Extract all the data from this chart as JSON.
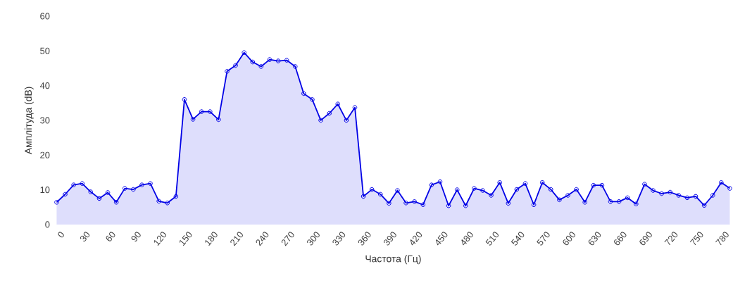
{
  "chart_data": {
    "type": "area",
    "xlabel": "Частота (Гц)",
    "ylabel": "Амплітуда (dB)",
    "categories": [
      "0",
      null,
      null,
      "30",
      null,
      null,
      "60",
      null,
      null,
      "90",
      null,
      null,
      "120",
      null,
      null,
      "150",
      null,
      null,
      "180",
      null,
      null,
      "210",
      null,
      null,
      "240",
      null,
      null,
      "270",
      null,
      null,
      "300",
      null,
      null,
      "330",
      null,
      null,
      "360",
      null,
      null,
      "390",
      null,
      null,
      "420",
      null,
      null,
      "450",
      null,
      null,
      "480",
      null,
      null,
      "510",
      null,
      null,
      "540",
      null,
      null,
      "570",
      null,
      null,
      "600",
      null,
      null,
      "630",
      null,
      null,
      "660",
      null,
      null,
      "690",
      null,
      null,
      "720",
      null,
      null,
      "750",
      null,
      null,
      "780",
      null
    ],
    "series": [
      {
        "color": "#0000e6",
        "values": [
          6.4,
          8.7,
          11.4,
          11.8,
          9.4,
          7.5,
          9.2,
          6.4,
          10.4,
          10.1,
          11.4,
          11.8,
          6.7,
          6.2,
          8.1,
          36.0,
          30.3,
          32.5,
          32.5,
          30.2,
          44.1,
          45.8,
          49.5,
          46.8,
          45.5,
          47.5,
          47.1,
          47.3,
          45.5,
          37.7,
          36.0,
          30.0,
          32.0,
          34.7,
          30.0,
          33.7,
          8.1,
          10.1,
          8.7,
          6.1,
          9.8,
          6.2,
          6.6,
          5.7,
          11.4,
          12.3,
          5.4,
          10.0,
          5.4,
          10.4,
          9.8,
          8.4,
          12.1,
          6.1,
          10.1,
          11.8,
          5.7,
          12.1,
          10.1,
          7.1,
          8.4,
          10.1,
          6.4,
          11.3,
          11.3,
          6.6,
          6.6,
          7.7,
          5.9,
          11.6,
          9.8,
          8.9,
          9.3,
          8.4,
          7.7,
          8.1,
          5.5,
          8.4,
          12.1,
          10.4
        ]
      }
    ],
    "ylim": [
      0,
      60
    ],
    "yticks": [
      0,
      10,
      20,
      30,
      40,
      50,
      60
    ],
    "marker": "circle",
    "line_style": "solid"
  }
}
